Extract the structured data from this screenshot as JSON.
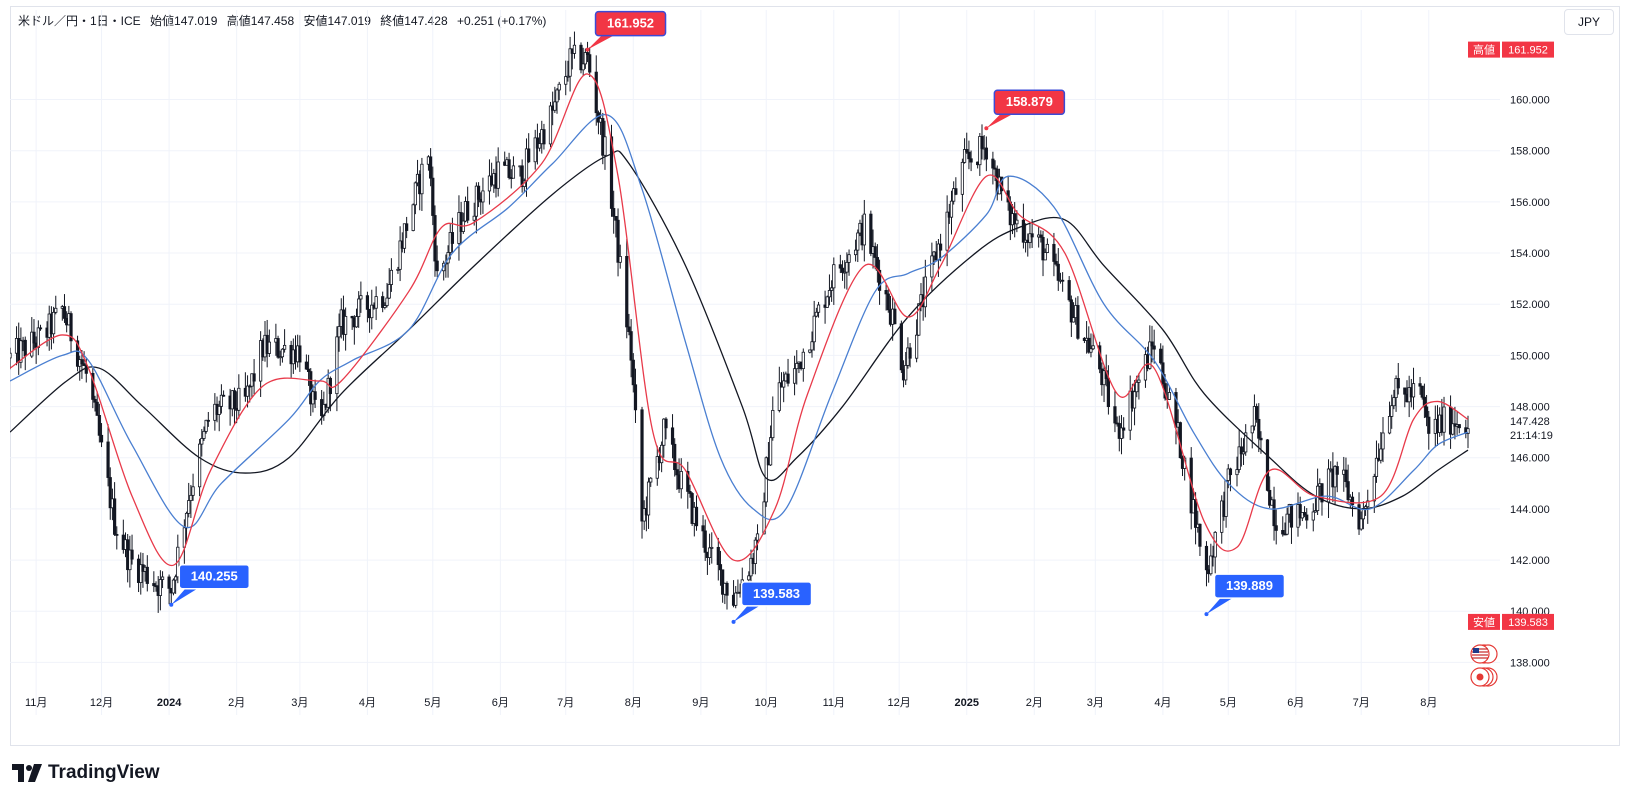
{
  "header": {
    "symbol": "米ドル／円・1日・ICE",
    "open": "始値147.019",
    "high": "高値147.458",
    "low": "安値147.019",
    "close": "終値147.428",
    "change": "+0.251 (+0.17%)"
  },
  "currency_button": "JPY",
  "brand": "TradingView",
  "colors": {
    "up": "#131722",
    "ma_fast": "#e83a4a",
    "ma_mid": "#4a7fd1",
    "ma_slow": "#131722",
    "high_badge": "#f23645",
    "low_badge": "#2962ff",
    "grid": "#f0f3fa"
  },
  "chart_data": {
    "type": "candlestick",
    "title": "米ドル／円・1日・ICE",
    "y_axis": {
      "ticks": [
        "138.000",
        "140.000",
        "142.000",
        "144.000",
        "146.000",
        "148.000",
        "150.000",
        "152.000",
        "154.000",
        "156.000",
        "158.000",
        "160.000"
      ],
      "range": [
        137.0,
        163.5
      ]
    },
    "x_axis": {
      "ticks": [
        "11月",
        "12月",
        "2024",
        "2月",
        "3月",
        "4月",
        "5月",
        "6月",
        "7月",
        "8月",
        "9月",
        "10月",
        "11月",
        "12月",
        "2025",
        "2月",
        "3月",
        "4月",
        "5月",
        "6月",
        "7月",
        "8月"
      ],
      "bold": [
        "2024",
        "2025"
      ]
    },
    "close_path": [
      [
        "2023-10-20",
        149.9
      ],
      [
        "2023-11-05",
        150.8
      ],
      [
        "2023-11-13",
        151.8
      ],
      [
        "2023-11-25",
        149.0
      ],
      [
        "2023-12-07",
        143.5
      ],
      [
        "2023-12-14",
        142.0
      ],
      [
        "2023-12-28",
        141.0
      ],
      [
        "2024-01-02",
        140.9
      ],
      [
        "2024-01-10",
        144.5
      ],
      [
        "2024-01-20",
        147.8
      ],
      [
        "2024-02-05",
        148.2
      ],
      [
        "2024-02-13",
        150.3
      ],
      [
        "2024-03-01",
        150.2
      ],
      [
        "2024-03-10",
        147.0
      ],
      [
        "2024-03-20",
        151.2
      ],
      [
        "2024-04-10",
        152.5
      ],
      [
        "2024-04-29",
        158.0
      ],
      [
        "2024-05-03",
        153.0
      ],
      [
        "2024-05-15",
        155.5
      ],
      [
        "2024-05-31",
        157.2
      ],
      [
        "2024-06-10",
        157.0
      ],
      [
        "2024-06-25",
        159.5
      ],
      [
        "2024-07-03",
        161.5
      ],
      [
        "2024-07-11",
        161.6
      ],
      [
        "2024-07-20",
        157.5
      ],
      [
        "2024-07-31",
        150.0
      ],
      [
        "2024-08-05",
        143.5
      ],
      [
        "2024-08-15",
        147.0
      ],
      [
        "2024-08-23",
        145.0
      ],
      [
        "2024-09-06",
        142.0
      ],
      [
        "2024-09-16",
        140.5
      ],
      [
        "2024-09-27",
        142.5
      ],
      [
        "2024-10-05",
        148.5
      ],
      [
        "2024-10-15",
        149.5
      ],
      [
        "2024-10-31",
        153.0
      ],
      [
        "2024-11-15",
        155.0
      ],
      [
        "2024-11-28",
        151.5
      ],
      [
        "2024-12-03",
        149.5
      ],
      [
        "2024-12-18",
        154.0
      ],
      [
        "2024-12-31",
        157.5
      ],
      [
        "2025-01-10",
        158.2
      ],
      [
        "2025-01-20",
        155.5
      ],
      [
        "2025-02-05",
        154.2
      ],
      [
        "2025-02-14",
        152.5
      ],
      [
        "2025-03-03",
        149.5
      ],
      [
        "2025-03-11",
        147.0
      ],
      [
        "2025-03-28",
        150.5
      ],
      [
        "2025-04-09",
        146.5
      ],
      [
        "2025-04-21",
        141.5
      ],
      [
        "2025-05-01",
        145.0
      ],
      [
        "2025-05-13",
        147.5
      ],
      [
        "2025-05-23",
        143.5
      ],
      [
        "2025-06-05",
        143.8
      ],
      [
        "2025-06-20",
        145.5
      ],
      [
        "2025-07-01",
        143.5
      ],
      [
        "2025-07-15",
        148.5
      ],
      [
        "2025-07-28",
        148.5
      ],
      [
        "2025-08-01",
        147.0
      ],
      [
        "2025-08-10",
        147.5
      ],
      [
        "2025-08-19",
        147.428
      ]
    ],
    "ma_fast_path": [
      [
        "2023-10-20",
        149.5
      ],
      [
        "2023-11-13",
        150.8
      ],
      [
        "2023-11-25",
        149.5
      ],
      [
        "2023-12-15",
        144.5
      ],
      [
        "2024-01-03",
        141.8
      ],
      [
        "2024-01-20",
        145.5
      ],
      [
        "2024-02-13",
        148.8
      ],
      [
        "2024-03-10",
        149.0
      ],
      [
        "2024-03-20",
        149.0
      ],
      [
        "2024-04-20",
        152.5
      ],
      [
        "2024-05-05",
        155.0
      ],
      [
        "2024-05-20",
        155.2
      ],
      [
        "2024-06-20",
        157.5
      ],
      [
        "2024-07-11",
        161.0
      ],
      [
        "2024-07-25",
        157.0
      ],
      [
        "2024-08-10",
        147.0
      ],
      [
        "2024-08-25",
        145.5
      ],
      [
        "2024-09-16",
        142.0
      ],
      [
        "2024-10-05",
        144.0
      ],
      [
        "2024-10-20",
        148.5
      ],
      [
        "2024-11-15",
        153.5
      ],
      [
        "2024-12-05",
        151.5
      ],
      [
        "2024-12-20",
        153.5
      ],
      [
        "2025-01-10",
        157.0
      ],
      [
        "2025-01-25",
        155.5
      ],
      [
        "2025-02-15",
        154.0
      ],
      [
        "2025-03-11",
        148.5
      ],
      [
        "2025-03-28",
        149.5
      ],
      [
        "2025-04-20",
        143.5
      ],
      [
        "2025-05-05",
        142.5
      ],
      [
        "2025-05-20",
        145.5
      ],
      [
        "2025-06-10",
        144.5
      ],
      [
        "2025-07-10",
        144.5
      ],
      [
        "2025-07-25",
        147.5
      ],
      [
        "2025-08-05",
        148.2
      ],
      [
        "2025-08-19",
        147.5
      ]
    ],
    "ma_mid_path": [
      [
        "2023-10-20",
        149.0
      ],
      [
        "2023-11-13",
        150.0
      ],
      [
        "2023-11-25",
        149.8
      ],
      [
        "2023-12-15",
        146.5
      ],
      [
        "2024-01-08",
        143.3
      ],
      [
        "2024-01-25",
        145.0
      ],
      [
        "2024-02-25",
        147.5
      ],
      [
        "2024-03-10",
        149.0
      ],
      [
        "2024-03-25",
        149.8
      ],
      [
        "2024-04-20",
        151.0
      ],
      [
        "2024-05-10",
        154.0
      ],
      [
        "2024-06-05",
        155.8
      ],
      [
        "2024-06-25",
        157.5
      ],
      [
        "2024-07-20",
        159.4
      ],
      [
        "2024-08-05",
        156.5
      ],
      [
        "2024-08-25",
        150.5
      ],
      [
        "2024-09-10",
        146.0
      ],
      [
        "2024-09-25",
        144.0
      ],
      [
        "2024-10-10",
        144.0
      ],
      [
        "2024-10-31",
        148.5
      ],
      [
        "2024-11-20",
        152.5
      ],
      [
        "2024-12-05",
        153.2
      ],
      [
        "2024-12-20",
        153.8
      ],
      [
        "2025-01-10",
        155.5
      ],
      [
        "2025-01-20",
        157.0
      ],
      [
        "2025-02-10",
        155.8
      ],
      [
        "2025-03-05",
        152.0
      ],
      [
        "2025-03-28",
        149.8
      ],
      [
        "2025-04-15",
        147.0
      ],
      [
        "2025-05-01",
        145.0
      ],
      [
        "2025-05-20",
        144.0
      ],
      [
        "2025-06-15",
        144.5
      ],
      [
        "2025-07-05",
        144.0
      ],
      [
        "2025-07-25",
        145.5
      ],
      [
        "2025-08-05",
        146.5
      ],
      [
        "2025-08-19",
        147.0
      ]
    ],
    "ma_slow_path": [
      [
        "2023-10-20",
        147.0
      ],
      [
        "2023-11-15",
        149.0
      ],
      [
        "2023-11-30",
        149.5
      ],
      [
        "2023-12-20",
        148.0
      ],
      [
        "2024-01-15",
        146.0
      ],
      [
        "2024-02-05",
        145.4
      ],
      [
        "2024-02-25",
        146.0
      ],
      [
        "2024-03-20",
        148.5
      ],
      [
        "2024-04-20",
        151.0
      ],
      [
        "2024-05-20",
        153.5
      ],
      [
        "2024-06-25",
        156.3
      ],
      [
        "2024-07-20",
        157.8
      ],
      [
        "2024-07-30",
        157.5
      ],
      [
        "2024-08-25",
        153.5
      ],
      [
        "2024-09-20",
        148.0
      ],
      [
        "2024-10-01",
        145.2
      ],
      [
        "2024-10-15",
        146.0
      ],
      [
        "2024-11-05",
        148.0
      ],
      [
        "2024-12-05",
        151.5
      ],
      [
        "2025-01-05",
        154.0
      ],
      [
        "2025-01-25",
        155.0
      ],
      [
        "2025-02-15",
        155.3
      ],
      [
        "2025-03-05",
        153.5
      ],
      [
        "2025-04-01",
        151.0
      ],
      [
        "2025-04-20",
        148.5
      ],
      [
        "2025-05-20",
        146.0
      ],
      [
        "2025-06-10",
        144.5
      ],
      [
        "2025-07-01",
        144.0
      ],
      [
        "2025-07-20",
        144.5
      ],
      [
        "2025-08-05",
        145.5
      ],
      [
        "2025-08-19",
        146.3
      ]
    ],
    "badges": [
      {
        "label": "161.952",
        "type": "high",
        "date": "2024-07-11",
        "value": 161.952
      },
      {
        "label": "158.879",
        "type": "high",
        "date": "2025-01-10",
        "value": 158.879
      },
      {
        "label": "140.255",
        "type": "low",
        "date": "2024-01-02",
        "value": 140.255
      },
      {
        "label": "139.583",
        "type": "low",
        "date": "2024-09-16",
        "value": 139.583
      },
      {
        "label": "139.889",
        "type": "low",
        "date": "2025-04-21",
        "value": 139.889
      }
    ],
    "right_labels": {
      "high_title": "高値",
      "high_value": "161.952",
      "low_title": "安値",
      "low_value": "139.583",
      "last_price": "147.428",
      "countdown": "21:14:19"
    },
    "icons": [
      "us-flag-icon",
      "japan-flag-icon"
    ]
  }
}
